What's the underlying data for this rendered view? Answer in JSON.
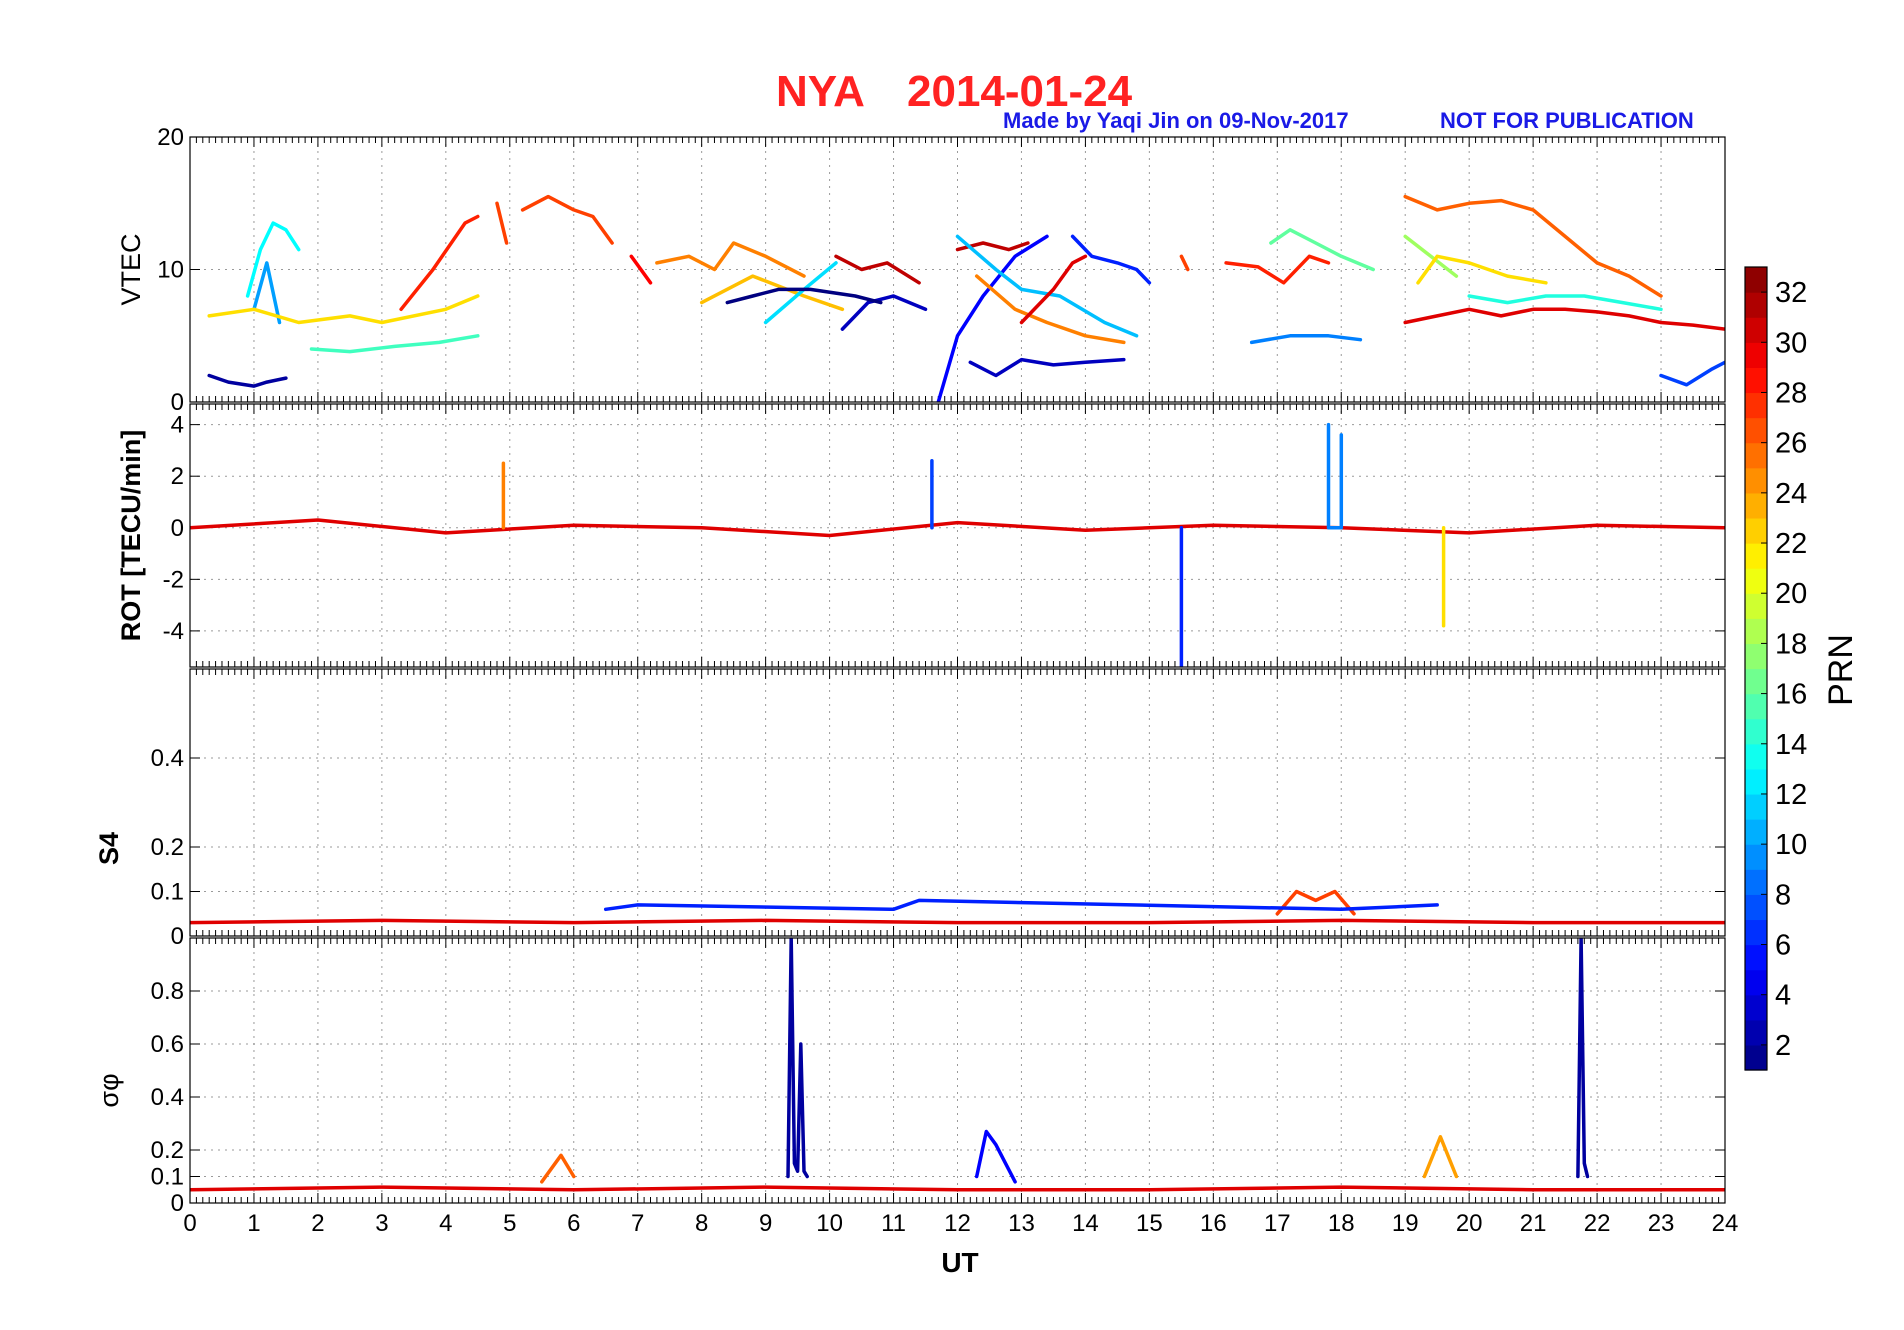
{
  "figure": {
    "title_station": "NYA",
    "title_date": "2014-01-24",
    "credit": "Made by Yaqi Jin on 09-Nov-2017",
    "notice": "NOT FOR PUBLICATION",
    "xlabel": "UT",
    "colorbar_label": "PRN",
    "colors": {
      "title": "#ff2222",
      "credit": "#1a1ae6"
    }
  },
  "chart_data": [
    {
      "type": "line",
      "panel": "vtec",
      "ylabel": "VTEC",
      "x_range": [
        0,
        24
      ],
      "ylim": [
        0,
        20
      ],
      "xticks": [
        "0",
        "1",
        "2",
        "3",
        "4",
        "5",
        "6",
        "7",
        "8",
        "9",
        "10",
        "11",
        "12",
        "13",
        "14",
        "15",
        "16",
        "17",
        "18",
        "19",
        "20",
        "21",
        "22",
        "23",
        "24"
      ],
      "yticks": [
        {
          "v": 0,
          "t": "0"
        },
        {
          "v": 10,
          "t": "10"
        },
        {
          "v": 20,
          "t": "20"
        }
      ],
      "grid": true,
      "series": [
        {
          "prn": 2,
          "x": [
            0.3,
            0.6,
            1.0,
            1.2,
            1.5
          ],
          "y": [
            2,
            1.5,
            1.2,
            1.5,
            1.8
          ]
        },
        {
          "prn": 13,
          "x": [
            0.9,
            1.1,
            1.3,
            1.5,
            1.7
          ],
          "y": [
            8,
            11.5,
            13.5,
            13,
            11.5
          ]
        },
        {
          "prn": 10,
          "x": [
            1.0,
            1.2,
            1.4
          ],
          "y": [
            7,
            10.5,
            6
          ]
        },
        {
          "prn": 22,
          "x": [
            0.3,
            1.0,
            1.7,
            2.5,
            3.0,
            4.0,
            4.5
          ],
          "y": [
            6.5,
            7,
            6,
            6.5,
            6,
            7,
            8
          ]
        },
        {
          "prn": 15,
          "x": [
            1.9,
            2.5,
            3.2,
            3.9,
            4.5
          ],
          "y": [
            4,
            3.8,
            4.2,
            4.5,
            5
          ]
        },
        {
          "prn": 28,
          "x": [
            3.3,
            3.8,
            4.3,
            4.5
          ],
          "y": [
            7,
            10,
            13.5,
            14
          ]
        },
        {
          "prn": 27,
          "x": [
            4.8,
            4.9,
            4.95
          ],
          "y": [
            15,
            13,
            12
          ]
        },
        {
          "prn": 27,
          "x": [
            5.2,
            5.6,
            6.0,
            6.3,
            6.6
          ],
          "y": [
            14.5,
            15.5,
            14.5,
            14,
            12
          ]
        },
        {
          "prn": 29,
          "x": [
            6.9,
            7.2
          ],
          "y": [
            11,
            9
          ]
        },
        {
          "prn": 25,
          "x": [
            7.3,
            7.8,
            8.2,
            8.5,
            9.0,
            9.6
          ],
          "y": [
            10.5,
            11,
            10,
            12,
            11,
            9.5
          ]
        },
        {
          "prn": 23,
          "x": [
            8.0,
            8.8,
            9.6,
            10.2
          ],
          "y": [
            7.5,
            9.5,
            8,
            7
          ]
        },
        {
          "prn": 12,
          "x": [
            9.0,
            9.6,
            10.1
          ],
          "y": [
            6,
            8.5,
            10.5
          ]
        },
        {
          "prn": 31,
          "x": [
            10.1,
            10.5,
            10.9,
            11.4
          ],
          "y": [
            11,
            10,
            10.5,
            9
          ]
        },
        {
          "prn": 3,
          "x": [
            10.2,
            10.6,
            11.0,
            11.5
          ],
          "y": [
            5.5,
            7.5,
            8,
            7
          ]
        },
        {
          "prn": 1,
          "x": [
            8.4,
            8.8,
            9.2,
            9.7,
            10.4,
            10.8
          ],
          "y": [
            7.5,
            8,
            8.5,
            8.5,
            8,
            7.5
          ]
        },
        {
          "prn": 5,
          "x": [
            11.7,
            12.0,
            12.4,
            12.9,
            13.4
          ],
          "y": [
            0,
            5,
            8,
            11,
            12.5
          ]
        },
        {
          "prn": 31,
          "x": [
            12.0,
            12.4,
            12.8,
            13.1
          ],
          "y": [
            11.5,
            12,
            11.5,
            12
          ]
        },
        {
          "prn": 11,
          "x": [
            12.0,
            12.6,
            13.0,
            13.6,
            14.3,
            14.8
          ],
          "y": [
            12.5,
            10,
            8.5,
            8,
            6,
            5
          ]
        },
        {
          "prn": 25,
          "x": [
            12.3,
            12.9,
            13.4,
            14.0,
            14.6
          ],
          "y": [
            9.5,
            7,
            6,
            5,
            4.5
          ]
        },
        {
          "prn": 6,
          "x": [
            13.8,
            14.1,
            14.5,
            14.8,
            15.0
          ],
          "y": [
            12.5,
            11,
            10.5,
            10,
            9
          ]
        },
        {
          "prn": 30,
          "x": [
            13.0,
            13.5,
            13.8,
            14.0
          ],
          "y": [
            6,
            8.5,
            10.5,
            11
          ]
        },
        {
          "prn": 3,
          "x": [
            12.2,
            12.6,
            13.0,
            13.5,
            14.0,
            14.6
          ],
          "y": [
            3,
            2,
            3.2,
            2.8,
            3,
            3.2
          ]
        },
        {
          "prn": 27,
          "x": [
            15.5,
            15.6
          ],
          "y": [
            11,
            10
          ]
        },
        {
          "prn": 28,
          "x": [
            16.2,
            16.7,
            17.1,
            17.5,
            17.8
          ],
          "y": [
            10.5,
            10.2,
            9,
            11,
            10.5
          ]
        },
        {
          "prn": 16,
          "x": [
            16.9,
            17.2,
            17.6,
            18.0,
            18.5
          ],
          "y": [
            12,
            13,
            12,
            11,
            10
          ]
        },
        {
          "prn": 9,
          "x": [
            16.6,
            17.2,
            17.8,
            18.3
          ],
          "y": [
            4.5,
            5,
            5,
            4.7
          ]
        },
        {
          "prn": 18,
          "x": [
            19.0,
            19.4,
            19.8
          ],
          "y": [
            12.5,
            11,
            9.5
          ]
        },
        {
          "prn": 26,
          "x": [
            19.0,
            19.5,
            20.0,
            20.5,
            21.0,
            21.5,
            22.0,
            22.5,
            23.0
          ],
          "y": [
            15.5,
            14.5,
            15,
            15.2,
            14.5,
            12.5,
            10.5,
            9.5,
            8
          ]
        },
        {
          "prn": 22,
          "x": [
            19.2,
            19.5,
            20.0,
            20.6,
            21.2
          ],
          "y": [
            9,
            11,
            10.5,
            9.5,
            9
          ]
        },
        {
          "prn": 14,
          "x": [
            20.0,
            20.6,
            21.2,
            21.8,
            22.4,
            23.0
          ],
          "y": [
            8,
            7.5,
            8,
            8,
            7.5,
            7
          ]
        },
        {
          "prn": 30,
          "x": [
            19.0,
            19.5,
            20.0,
            20.5,
            21.0,
            21.5,
            22.0,
            22.5,
            23.0,
            23.5,
            24.0
          ],
          "y": [
            6,
            6.5,
            7,
            6.5,
            7,
            7,
            6.8,
            6.5,
            6,
            5.8,
            5.5
          ]
        },
        {
          "prn": 7,
          "x": [
            23.0,
            23.4,
            23.8,
            24.0
          ],
          "y": [
            2,
            1.3,
            2.5,
            3
          ]
        }
      ]
    },
    {
      "type": "line",
      "panel": "rot",
      "ylabel": "ROT [TECU/min]",
      "x_range": [
        0,
        24
      ],
      "ylim": [
        -5.4,
        4.8
      ],
      "yticks": [
        {
          "v": 4,
          "t": "4"
        },
        {
          "v": 2,
          "t": "2"
        },
        {
          "v": 0,
          "t": "0"
        },
        {
          "v": -2,
          "t": "-2"
        },
        {
          "v": -4,
          "t": "-4"
        }
      ],
      "grid": true,
      "series": [
        {
          "prn": 30,
          "x": [
            0,
            2,
            4,
            6,
            8,
            10,
            12,
            14,
            16,
            18,
            20,
            22,
            24
          ],
          "y": [
            0,
            0.3,
            -0.2,
            0.1,
            0,
            -0.3,
            0.2,
            -0.1,
            0.1,
            0,
            -0.2,
            0.1,
            0
          ]
        },
        {
          "prn": 6,
          "x": [
            15.5,
            15.5,
            15.5
          ],
          "y": [
            0,
            -5.4,
            0
          ]
        },
        {
          "prn": 9,
          "x": [
            17.8,
            17.8,
            17.8,
            18.0,
            18.0,
            18.0
          ],
          "y": [
            0,
            4,
            0,
            0,
            3.6,
            0
          ]
        },
        {
          "prn": 7,
          "x": [
            11.6,
            11.6,
            11.6
          ],
          "y": [
            0,
            2.6,
            0
          ]
        },
        {
          "prn": 22,
          "x": [
            19.6,
            19.6,
            19.6
          ],
          "y": [
            0,
            -3.8,
            0
          ]
        },
        {
          "prn": 25,
          "x": [
            4.9,
            4.9,
            4.9
          ],
          "y": [
            0,
            2.5,
            0
          ]
        }
      ]
    },
    {
      "type": "line",
      "panel": "s4",
      "ylabel": "S4",
      "x_range": [
        0,
        24
      ],
      "ylim": [
        0,
        0.6
      ],
      "yticks": [
        {
          "v": 0,
          "t": "0"
        },
        {
          "v": 0.1,
          "t": "0.1"
        },
        {
          "v": 0.2,
          "t": "0.2"
        },
        {
          "v": 0.4,
          "t": "0.4"
        }
      ],
      "grid": true,
      "series": [
        {
          "prn": 30,
          "x": [
            0,
            3,
            6,
            9,
            12,
            15,
            18,
            21,
            24
          ],
          "y": [
            0.03,
            0.035,
            0.03,
            0.035,
            0.03,
            0.03,
            0.035,
            0.03,
            0.03
          ]
        },
        {
          "prn": 27,
          "x": [
            17.0,
            17.3,
            17.6,
            17.9,
            18.2
          ],
          "y": [
            0.05,
            0.1,
            0.08,
            0.1,
            0.05
          ]
        },
        {
          "prn": 6,
          "x": [
            6.5,
            7.0,
            11.0,
            11.4,
            18.0,
            19.5
          ],
          "y": [
            0.06,
            0.07,
            0.06,
            0.08,
            0.06,
            0.07
          ]
        }
      ]
    },
    {
      "type": "line",
      "panel": "sigma_phi",
      "ylabel": "σφ",
      "x_range": [
        0,
        24
      ],
      "ylim": [
        0,
        1.0
      ],
      "yticks": [
        {
          "v": 0,
          "t": "0"
        },
        {
          "v": 0.1,
          "t": "0.1"
        },
        {
          "v": 0.2,
          "t": "0.2"
        },
        {
          "v": 0.4,
          "t": "0.4"
        },
        {
          "v": 0.6,
          "t": "0.6"
        },
        {
          "v": 0.8,
          "t": "0.8"
        }
      ],
      "grid": true,
      "series": [
        {
          "prn": 30,
          "x": [
            0,
            3,
            6,
            9,
            12,
            15,
            18,
            21,
            24
          ],
          "y": [
            0.05,
            0.06,
            0.05,
            0.06,
            0.05,
            0.05,
            0.06,
            0.05,
            0.05
          ]
        },
        {
          "prn": 2,
          "x": [
            9.35,
            9.4,
            9.45,
            9.5,
            9.55,
            9.6,
            9.65
          ],
          "y": [
            0.1,
            1.0,
            0.15,
            0.12,
            0.6,
            0.12,
            0.1
          ]
        },
        {
          "prn": 2,
          "x": [
            21.7,
            21.75,
            21.8,
            21.85
          ],
          "y": [
            0.1,
            1.0,
            0.15,
            0.1
          ]
        },
        {
          "prn": 5,
          "x": [
            12.3,
            12.45,
            12.6,
            12.75,
            12.9
          ],
          "y": [
            0.1,
            0.27,
            0.22,
            0.15,
            0.08
          ]
        },
        {
          "prn": 24,
          "x": [
            19.3,
            19.55,
            19.8
          ],
          "y": [
            0.1,
            0.25,
            0.1
          ]
        },
        {
          "prn": 26,
          "x": [
            5.5,
            5.8,
            6.0
          ],
          "y": [
            0.08,
            0.18,
            0.1
          ]
        }
      ]
    }
  ],
  "colorbar": {
    "range": [
      1,
      33
    ],
    "ticks": [
      "2",
      "4",
      "6",
      "8",
      "10",
      "12",
      "14",
      "16",
      "18",
      "20",
      "22",
      "24",
      "26",
      "28",
      "30",
      "32"
    ]
  }
}
